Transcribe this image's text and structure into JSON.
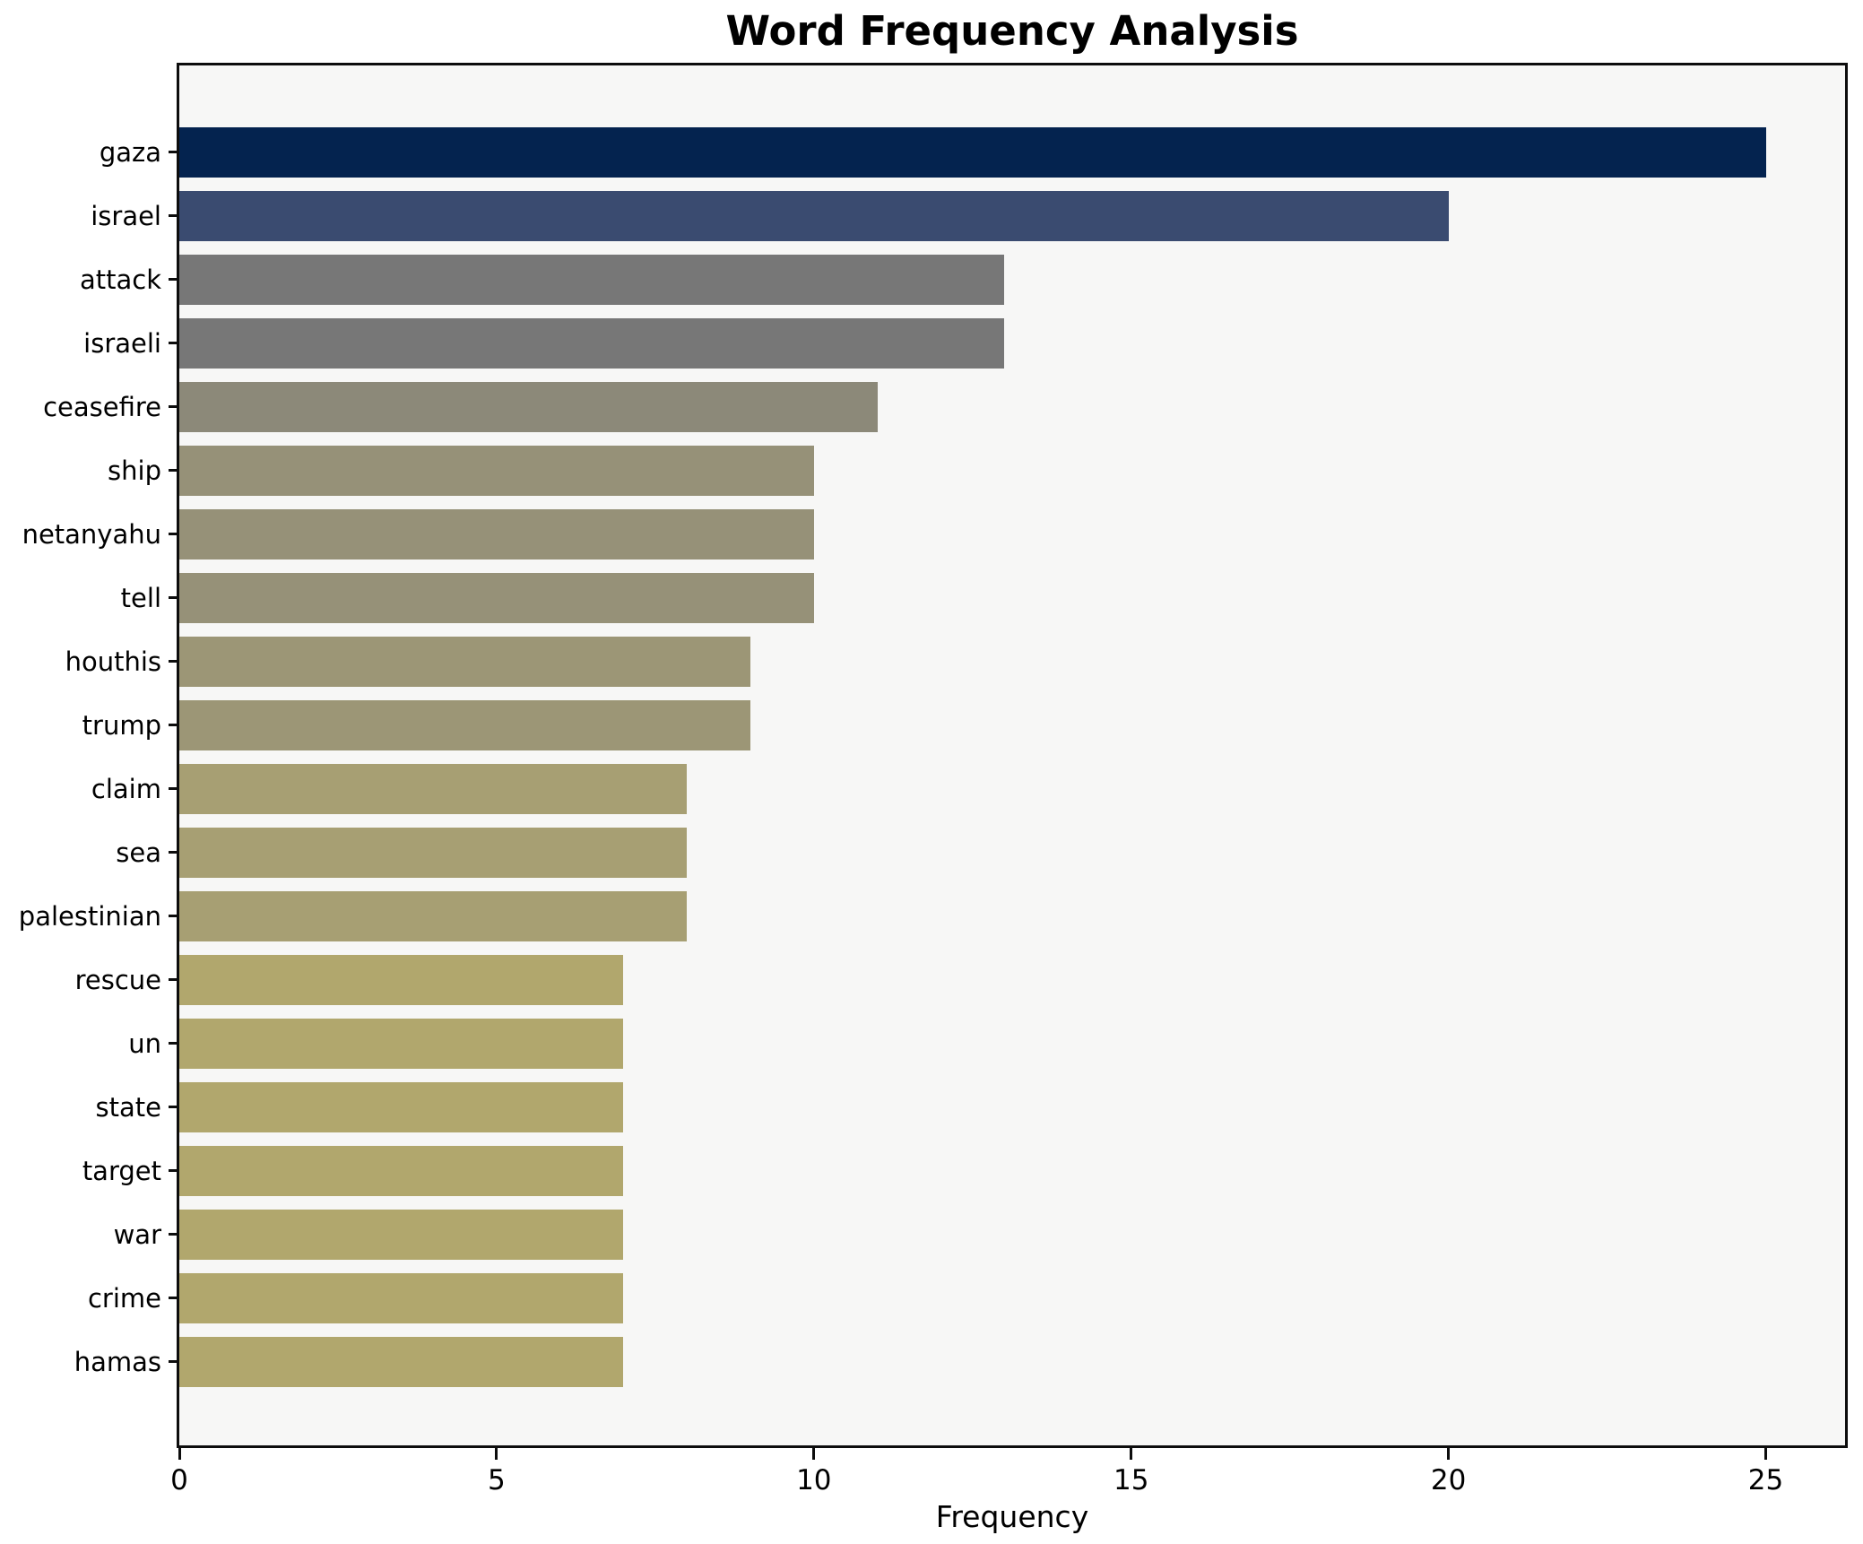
{
  "title": "Word Frequency Analysis",
  "xlabel": "Frequency",
  "colors": {
    "figure_background": "#ffffff",
    "plot_background": "#f7f7f6",
    "spine": "#0d0d0d",
    "text": "#000000"
  },
  "chart_data": {
    "type": "bar",
    "orientation": "horizontal",
    "title": "Word Frequency Analysis",
    "xlabel": "Frequency",
    "ylabel": "",
    "categories": [
      "gaza",
      "israel",
      "attack",
      "israeli",
      "ceasefire",
      "ship",
      "netanyahu",
      "tell",
      "houthis",
      "trump",
      "claim",
      "sea",
      "palestinian",
      "rescue",
      "un",
      "state",
      "target",
      "war",
      "crime",
      "hamas"
    ],
    "values": [
      25,
      20,
      13,
      13,
      11,
      10,
      10,
      10,
      9,
      9,
      8,
      8,
      8,
      7,
      7,
      7,
      7,
      7,
      7,
      7
    ],
    "bar_colors": [
      "#04234f",
      "#3a4b70",
      "#777777",
      "#777777",
      "#8c8979",
      "#969178",
      "#969178",
      "#969178",
      "#9c9676",
      "#9c9676",
      "#a79f73",
      "#a79f73",
      "#a79f73",
      "#b1a76d",
      "#b1a76d",
      "#b1a76d",
      "#b1a76d",
      "#b1a76d",
      "#b1a76d",
      "#b1a76d"
    ],
    "xlim": [
      0,
      26.25
    ],
    "xticks": [
      0,
      5,
      10,
      15,
      20,
      25
    ],
    "grid": false,
    "legend": null,
    "bar_height_ratio": 0.8
  }
}
